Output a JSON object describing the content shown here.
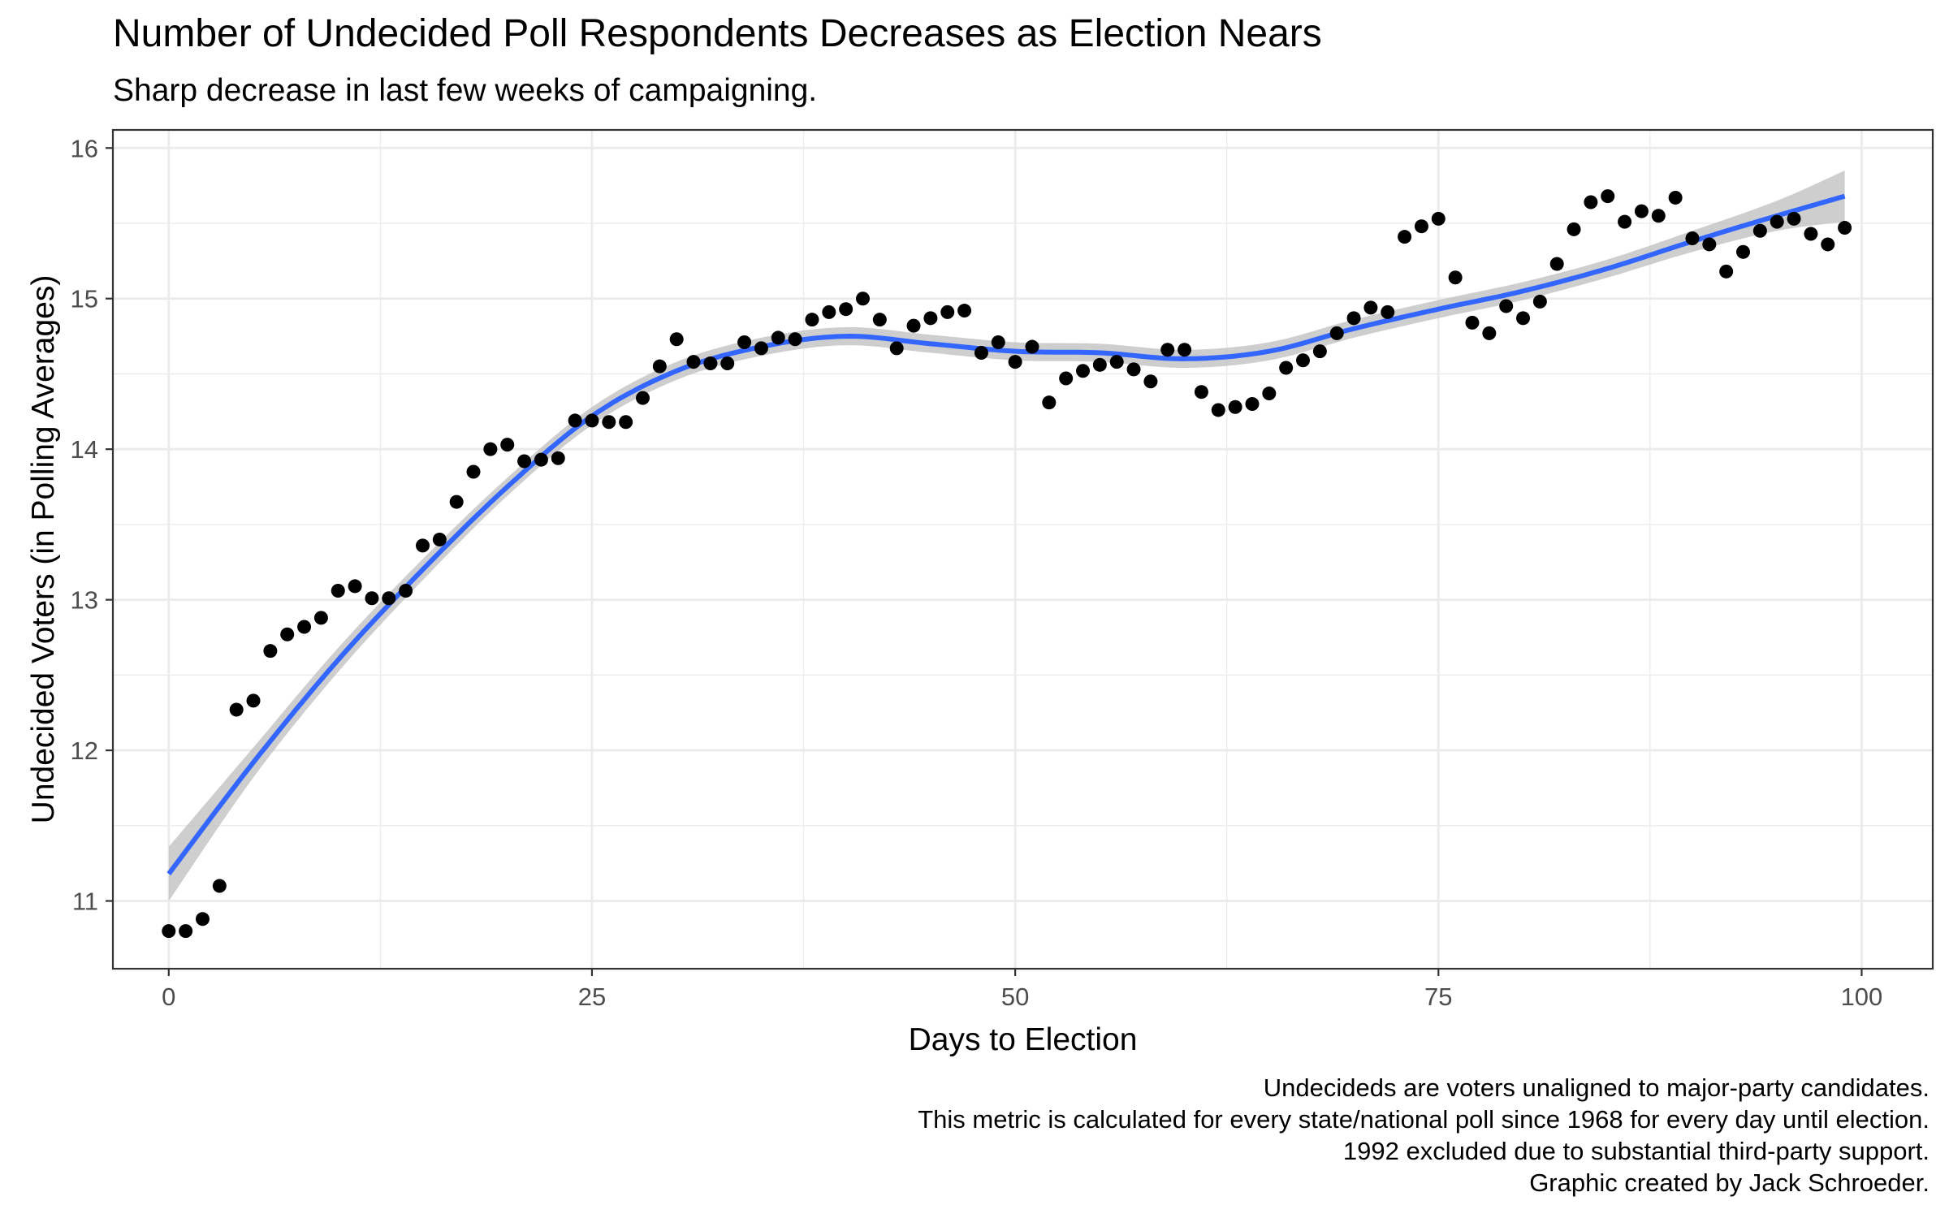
{
  "title": "Number of Undecided Poll Respondents Decreases as Election Nears",
  "subtitle": "Sharp decrease in last few weeks of campaigning.",
  "caption_lines": [
    "Undecideds are voters unaligned to major-party candidates.",
    "This metric is calculated for every state/national poll since 1968 for every day until election.",
    "1992 excluded due to substantial third-party support.",
    "Graphic created by Jack Schroeder."
  ],
  "colors": {
    "points": "#000000",
    "smooth_line": "#3366FF",
    "confidence_band": "#BEBEBE",
    "grid": "#EBEBEB",
    "panel_border": "#333333"
  },
  "chart_data": {
    "type": "scatter",
    "xlabel": "Days to Election",
    "ylabel": "Undecided Voters (in Polling Averages)",
    "xlim": [
      -3.3,
      104.2
    ],
    "ylim": [
      10.55,
      16.12
    ],
    "x_ticks": [
      0,
      25,
      50,
      75,
      100
    ],
    "x_tick_labels": [
      "0",
      "25",
      "50",
      "75",
      "100"
    ],
    "y_ticks": [
      11,
      12,
      13,
      14,
      15,
      16
    ],
    "y_tick_labels": [
      "11",
      "12",
      "13",
      "14",
      "15",
      "16"
    ],
    "grid": true,
    "legend": "none",
    "points": [
      [
        0,
        10.8
      ],
      [
        1,
        10.8
      ],
      [
        2,
        10.88
      ],
      [
        3,
        11.1
      ],
      [
        4,
        12.27
      ],
      [
        5,
        12.33
      ],
      [
        6,
        12.66
      ],
      [
        7,
        12.77
      ],
      [
        8,
        12.82
      ],
      [
        9,
        12.88
      ],
      [
        10,
        13.06
      ],
      [
        11,
        13.09
      ],
      [
        12,
        13.01
      ],
      [
        13,
        13.01
      ],
      [
        14,
        13.06
      ],
      [
        15,
        13.36
      ],
      [
        16,
        13.4
      ],
      [
        17,
        13.65
      ],
      [
        18,
        13.85
      ],
      [
        19,
        14.0
      ],
      [
        20,
        14.03
      ],
      [
        21,
        13.92
      ],
      [
        22,
        13.93
      ],
      [
        23,
        13.94
      ],
      [
        24,
        14.19
      ],
      [
        25,
        14.19
      ],
      [
        26,
        14.18
      ],
      [
        27,
        14.18
      ],
      [
        28,
        14.34
      ],
      [
        29,
        14.55
      ],
      [
        30,
        14.73
      ],
      [
        31,
        14.58
      ],
      [
        32,
        14.57
      ],
      [
        33,
        14.57
      ],
      [
        34,
        14.71
      ],
      [
        35,
        14.67
      ],
      [
        36,
        14.74
      ],
      [
        37,
        14.73
      ],
      [
        38,
        14.86
      ],
      [
        39,
        14.91
      ],
      [
        40,
        14.93
      ],
      [
        41,
        15.0
      ],
      [
        42,
        14.86
      ],
      [
        43,
        14.67
      ],
      [
        44,
        14.82
      ],
      [
        45,
        14.87
      ],
      [
        46,
        14.91
      ],
      [
        47,
        14.92
      ],
      [
        48,
        14.64
      ],
      [
        49,
        14.71
      ],
      [
        50,
        14.58
      ],
      [
        51,
        14.68
      ],
      [
        52,
        14.31
      ],
      [
        53,
        14.47
      ],
      [
        54,
        14.52
      ],
      [
        55,
        14.56
      ],
      [
        56,
        14.58
      ],
      [
        57,
        14.53
      ],
      [
        58,
        14.45
      ],
      [
        59,
        14.66
      ],
      [
        60,
        14.66
      ],
      [
        61,
        14.38
      ],
      [
        62,
        14.26
      ],
      [
        63,
        14.28
      ],
      [
        64,
        14.3
      ],
      [
        65,
        14.37
      ],
      [
        66,
        14.54
      ],
      [
        67,
        14.59
      ],
      [
        68,
        14.65
      ],
      [
        69,
        14.77
      ],
      [
        70,
        14.87
      ],
      [
        71,
        14.94
      ],
      [
        72,
        14.91
      ],
      [
        73,
        15.41
      ],
      [
        74,
        15.48
      ],
      [
        75,
        15.53
      ],
      [
        76,
        15.14
      ],
      [
        77,
        14.84
      ],
      [
        78,
        14.77
      ],
      [
        79,
        14.95
      ],
      [
        80,
        14.87
      ],
      [
        81,
        14.98
      ],
      [
        82,
        15.23
      ],
      [
        83,
        15.46
      ],
      [
        84,
        15.64
      ],
      [
        85,
        15.68
      ],
      [
        86,
        15.51
      ],
      [
        87,
        15.58
      ],
      [
        88,
        15.55
      ],
      [
        89,
        15.67
      ],
      [
        90,
        15.4
      ],
      [
        91,
        15.36
      ],
      [
        92,
        15.18
      ],
      [
        93,
        15.31
      ],
      [
        94,
        15.45
      ],
      [
        95,
        15.51
      ],
      [
        96,
        15.53
      ],
      [
        97,
        15.43
      ],
      [
        98,
        15.36
      ],
      [
        99,
        15.47
      ]
    ],
    "smooth": {
      "method": "loess",
      "x": [
        0,
        5,
        10,
        15,
        20,
        25,
        30,
        35,
        40,
        45,
        50,
        55,
        60,
        65,
        70,
        75,
        80,
        85,
        90,
        95,
        99
      ],
      "y": [
        11.18,
        11.92,
        12.6,
        13.2,
        13.75,
        14.22,
        14.52,
        14.68,
        14.75,
        14.7,
        14.65,
        14.64,
        14.6,
        14.65,
        14.8,
        14.93,
        15.05,
        15.2,
        15.38,
        15.55,
        15.68
      ],
      "band_halfwidth": [
        0.18,
        0.1,
        0.08,
        0.07,
        0.06,
        0.06,
        0.06,
        0.06,
        0.06,
        0.06,
        0.06,
        0.06,
        0.06,
        0.06,
        0.06,
        0.06,
        0.06,
        0.06,
        0.07,
        0.1,
        0.17
      ]
    }
  }
}
